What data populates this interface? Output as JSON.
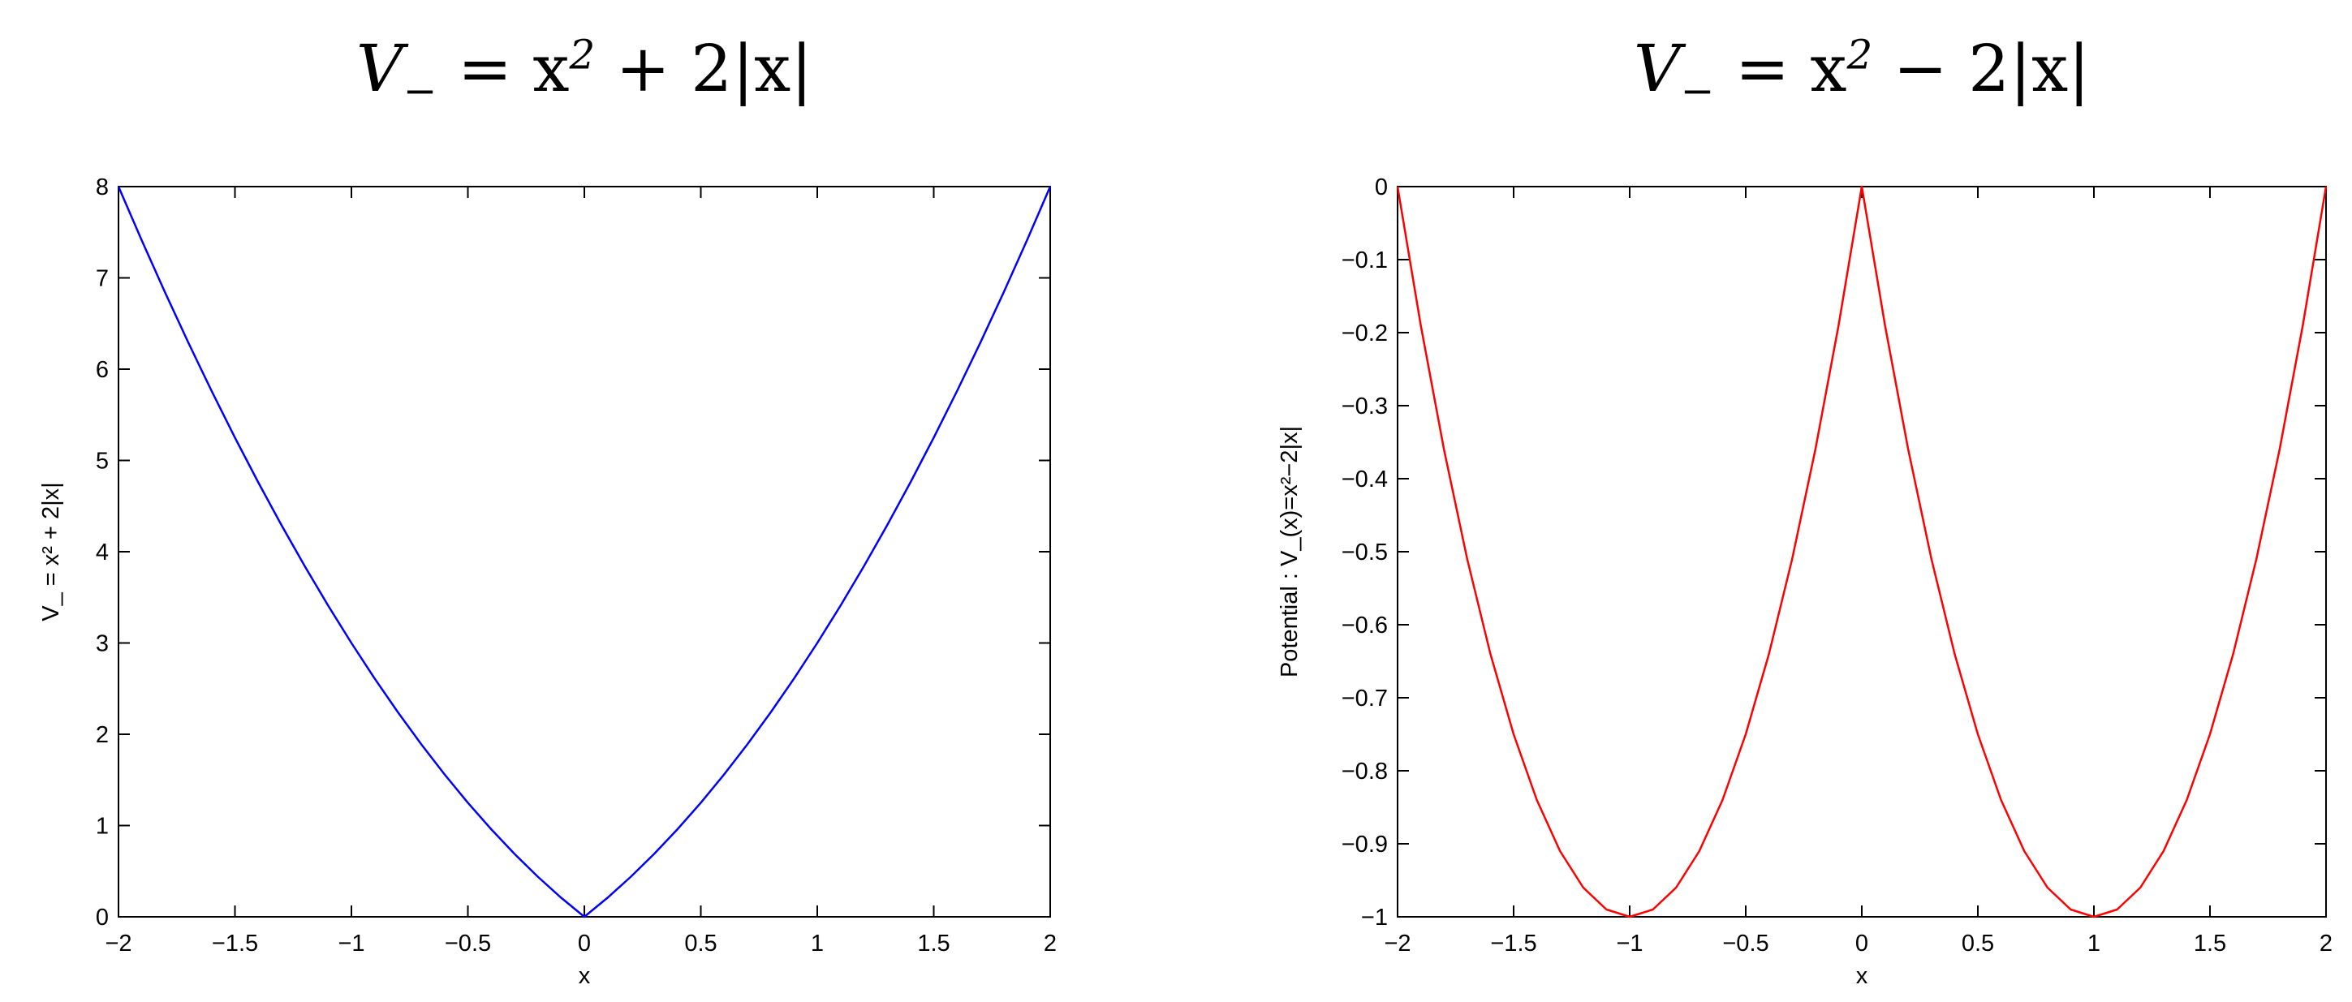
{
  "chart_data": [
    {
      "type": "line",
      "title_main": "V",
      "title_sub": "−",
      "title_rest": " = x",
      "title_sup": "2",
      "title_tail": " + 2|x|",
      "xlabel": "x",
      "ylabel": "V_ = x² + 2|x|",
      "xlim": [
        -2,
        2
      ],
      "ylim": [
        0,
        8
      ],
      "xticks": [
        "−2",
        "−1.5",
        "−1",
        "−0.5",
        "0",
        "0.5",
        "1",
        "1.5",
        "2"
      ],
      "yticks": [
        "0",
        "1",
        "2",
        "3",
        "4",
        "5",
        "6",
        "7",
        "8"
      ],
      "series": [
        {
          "color": "#0000ff",
          "x": [
            -2,
            -1.9,
            -1.8,
            -1.7,
            -1.6,
            -1.5,
            -1.4,
            -1.3,
            -1.2,
            -1.1,
            -1,
            -0.9,
            -0.8,
            -0.7,
            -0.6,
            -0.5,
            -0.4,
            -0.3,
            -0.2,
            -0.1,
            0,
            0.1,
            0.2,
            0.3,
            0.4,
            0.5,
            0.6,
            0.7,
            0.8,
            0.9,
            1,
            1.1,
            1.2,
            1.3,
            1.4,
            1.5,
            1.6,
            1.7,
            1.8,
            1.9,
            2
          ],
          "y": [
            8,
            7.41,
            6.84,
            6.29,
            5.76,
            5.25,
            4.76,
            4.29,
            3.84,
            3.41,
            3,
            2.61,
            2.24,
            1.89,
            1.56,
            1.25,
            0.96,
            0.69,
            0.44,
            0.21,
            0,
            0.21,
            0.44,
            0.69,
            0.96,
            1.25,
            1.56,
            1.89,
            2.24,
            2.61,
            3,
            3.41,
            3.84,
            4.29,
            4.76,
            5.25,
            5.76,
            6.29,
            6.84,
            7.41,
            8
          ]
        }
      ]
    },
    {
      "type": "line",
      "title_main": "V",
      "title_sub": "−",
      "title_rest": " = x",
      "title_sup": "2",
      "title_tail": " − 2|x|",
      "xlabel": "x",
      "ylabel": "Potential : V_(x)=x²−2|x|",
      "xlim": [
        -2,
        2
      ],
      "ylim": [
        -1,
        0
      ],
      "xticks": [
        "−2",
        "−1.5",
        "−1",
        "−0.5",
        "0",
        "0.5",
        "1",
        "1.5",
        "2"
      ],
      "yticks": [
        "0",
        "−0.1",
        "−0.2",
        "−0.3",
        "−0.4",
        "−0.5",
        "−0.6",
        "−0.7",
        "−0.8",
        "−0.9",
        "−1"
      ],
      "series": [
        {
          "color": "#ff0000",
          "x": [
            -2,
            -1.9,
            -1.8,
            -1.7,
            -1.6,
            -1.5,
            -1.4,
            -1.3,
            -1.2,
            -1.1,
            -1,
            -0.9,
            -0.8,
            -0.7,
            -0.6,
            -0.5,
            -0.4,
            -0.3,
            -0.2,
            -0.1,
            0,
            0.1,
            0.2,
            0.3,
            0.4,
            0.5,
            0.6,
            0.7,
            0.8,
            0.9,
            1,
            1.1,
            1.2,
            1.3,
            1.4,
            1.5,
            1.6,
            1.7,
            1.8,
            1.9,
            2
          ],
          "y": [
            0,
            -0.19,
            -0.36,
            -0.51,
            -0.64,
            -0.75,
            -0.84,
            -0.91,
            -0.96,
            -0.99,
            -1,
            -0.99,
            -0.96,
            -0.91,
            -0.84,
            -0.75,
            -0.64,
            -0.51,
            -0.36,
            -0.19,
            0,
            -0.19,
            -0.36,
            -0.51,
            -0.64,
            -0.75,
            -0.84,
            -0.91,
            -0.96,
            -0.99,
            -1,
            -0.99,
            -0.96,
            -0.91,
            -0.84,
            -0.75,
            -0.64,
            -0.51,
            -0.36,
            -0.19,
            0
          ]
        }
      ]
    }
  ]
}
